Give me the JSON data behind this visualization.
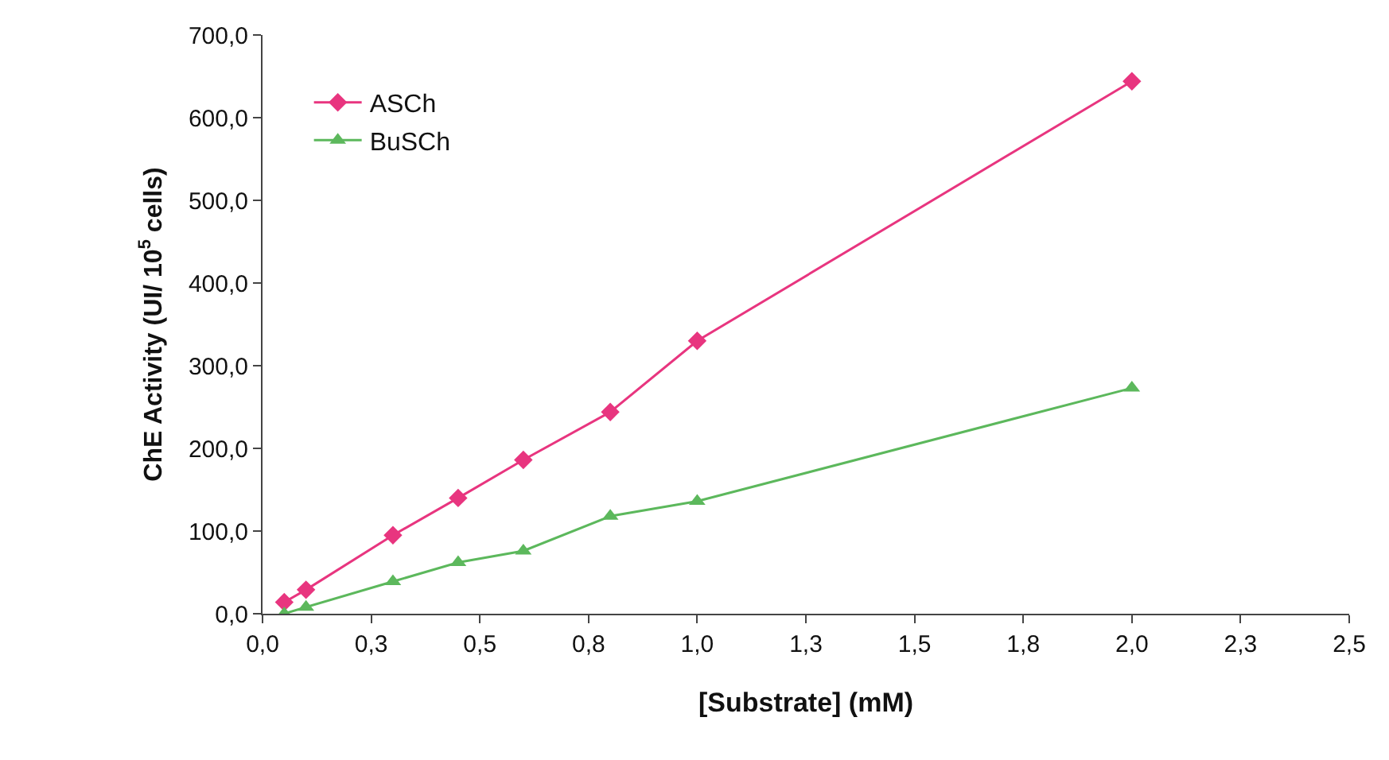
{
  "chart_data": {
    "type": "line",
    "xlabel": "[Substrate] (mM)",
    "ylabel": "ChE Activity (UI/ 10$^{5}$ cells)",
    "x": [
      0.05,
      0.1,
      0.3,
      0.45,
      0.6,
      0.8,
      1.0,
      2.0
    ],
    "series": [
      {
        "name": "ASCh",
        "color": "#e8357f",
        "marker": "diamond",
        "values": [
          14,
          29,
          95,
          140,
          186,
          244,
          330,
          644
        ]
      },
      {
        "name": "BuSCh",
        "color": "#5cb85c",
        "marker": "triangle",
        "values": [
          0,
          8,
          39,
          62,
          76,
          118,
          136,
          273
        ]
      }
    ],
    "xlim": [
      0,
      2.5
    ],
    "xticks": [
      {
        "value": 0,
        "label": "0,0"
      },
      {
        "value": 0.25,
        "label": "0,3"
      },
      {
        "value": 0.5,
        "label": "0,5"
      },
      {
        "value": 0.75,
        "label": "0,8"
      },
      {
        "value": 1.0,
        "label": "1,0"
      },
      {
        "value": 1.25,
        "label": "1,3"
      },
      {
        "value": 1.5,
        "label": "1,5"
      },
      {
        "value": 1.75,
        "label": "1,8"
      },
      {
        "value": 2.0,
        "label": "2,0"
      },
      {
        "value": 2.25,
        "label": "2,3"
      },
      {
        "value": 2.5,
        "label": "2,5"
      }
    ],
    "ylim": [
      0,
      700
    ],
    "yticks": [
      {
        "value": 0,
        "label": "0,0"
      },
      {
        "value": 100,
        "label": "100,0"
      },
      {
        "value": 200,
        "label": "200,0"
      },
      {
        "value": 300,
        "label": "300,0"
      },
      {
        "value": 400,
        "label": "400,0"
      },
      {
        "value": 500,
        "label": "500,0"
      },
      {
        "value": 600,
        "label": "600,0"
      },
      {
        "value": 700,
        "label": "700,0"
      }
    ],
    "grid": false,
    "legend": "top left",
    "line_style": "solid"
  }
}
